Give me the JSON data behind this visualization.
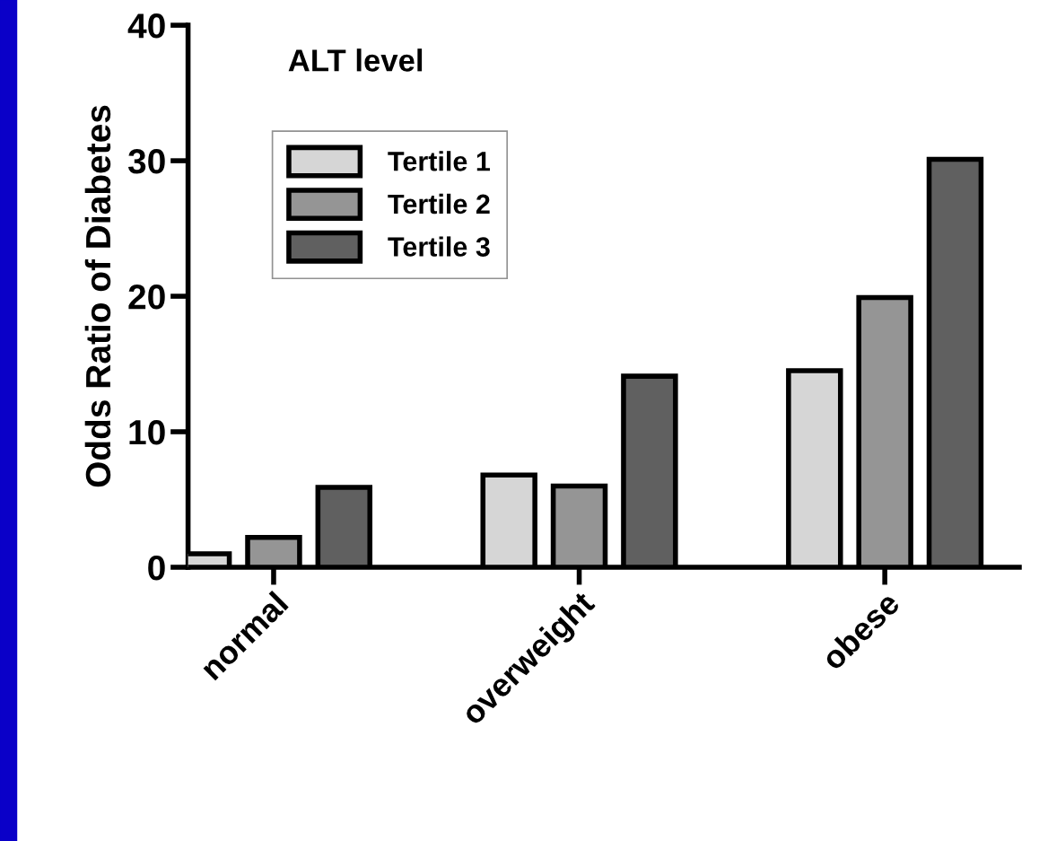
{
  "chart_data": {
    "type": "bar",
    "ylabel": "Odds Ratio of Diabetes",
    "legend_title": "ALT level",
    "categories": [
      "normal",
      "overweight",
      "obese"
    ],
    "series": [
      {
        "name": "Tertile 1",
        "color": "#d6d6d6",
        "values": [
          1.0,
          6.8,
          14.5
        ]
      },
      {
        "name": "Tertile 2",
        "color": "#959595",
        "values": [
          2.2,
          6.0,
          19.9
        ]
      },
      {
        "name": "Tertile 3",
        "color": "#606060",
        "values": [
          5.9,
          14.1,
          30.1
        ]
      }
    ],
    "ylim": [
      0,
      40
    ],
    "yticks": [
      0,
      10,
      20,
      30,
      40
    ],
    "grid": false,
    "legend": "top left"
  }
}
